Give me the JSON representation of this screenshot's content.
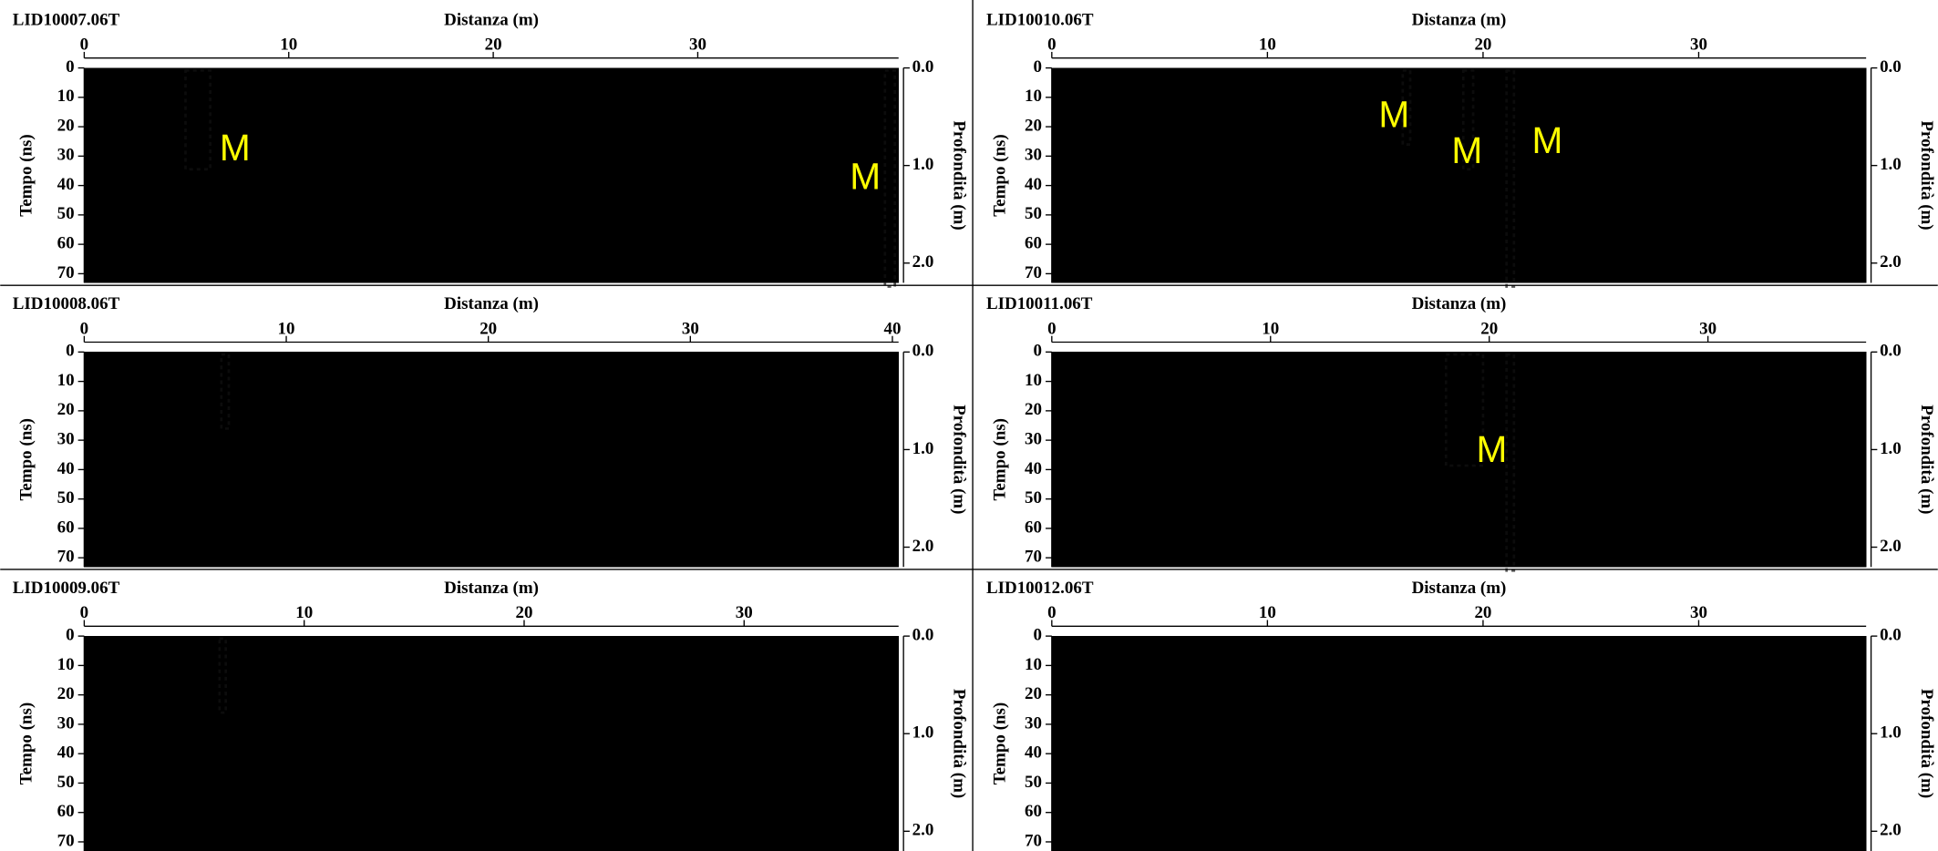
{
  "panels": [
    {
      "title": "LID10007.06T",
      "x_label": "Distanza (m)",
      "x_ticks": [
        0,
        10,
        20,
        30
      ],
      "y_label": "Tempo (ns)",
      "y_ticks": [
        0,
        10,
        20,
        30,
        40,
        50,
        60,
        70
      ],
      "y2_label": "Profondità (m)",
      "y2_ticks": [
        "0.0",
        "1.0",
        "2.0"
      ],
      "annotations": [
        "M",
        "M"
      ]
    },
    {
      "title": "LID10010.06T",
      "x_label": "Distanza (m)",
      "x_ticks": [
        0,
        10,
        20,
        30
      ],
      "y_label": "Tempo (ns)",
      "y_ticks": [
        0,
        10,
        20,
        30,
        40,
        50,
        60,
        70
      ],
      "y2_label": "Profondità (m)",
      "y2_ticks": [
        "0.0",
        "1.0",
        "2.0"
      ],
      "annotations": [
        "M",
        "M",
        "M"
      ]
    },
    {
      "title": "LID10008.06T",
      "x_label": "Distanza (m)",
      "x_ticks": [
        0,
        10,
        20,
        30,
        40
      ],
      "y_label": "Tempo (ns)",
      "y_ticks": [
        0,
        10,
        20,
        30,
        40,
        50,
        60,
        70
      ],
      "y2_label": "Profondità (m)",
      "y2_ticks": [
        "0.0",
        "1.0",
        "2.0"
      ],
      "annotations": []
    },
    {
      "title": "LID10011.06T",
      "x_label": "Distanza (m)",
      "x_ticks": [
        0,
        10,
        20,
        30
      ],
      "y_label": "Tempo (ns)",
      "y_ticks": [
        0,
        10,
        20,
        30,
        40,
        50,
        60,
        70
      ],
      "y2_label": "Profondità (m)",
      "y2_ticks": [
        "0.0",
        "1.0",
        "2.0"
      ],
      "annotations": [
        "M"
      ]
    },
    {
      "title": "LID10009.06T",
      "x_label": "Distanza (m)",
      "x_ticks": [
        0,
        10,
        20,
        30
      ],
      "y_label": "Tempo (ns)",
      "y_ticks": [
        0,
        10,
        20,
        30,
        40,
        50,
        60,
        70
      ],
      "y2_label": "Profondità (m)",
      "y2_ticks": [
        "0.0",
        "1.0",
        "2.0"
      ],
      "annotations": []
    },
    {
      "title": "LID10012.06T",
      "x_label": "Distanza (m)",
      "x_ticks": [
        0,
        10,
        20,
        30
      ],
      "y_label": "Tempo (ns)",
      "y_ticks": [
        0,
        10,
        20,
        30,
        40,
        50,
        60,
        70
      ],
      "y2_label": "Profondità (m)",
      "y2_ticks": [
        "0.0",
        "1.0",
        "2.0"
      ],
      "annotations": []
    }
  ]
}
